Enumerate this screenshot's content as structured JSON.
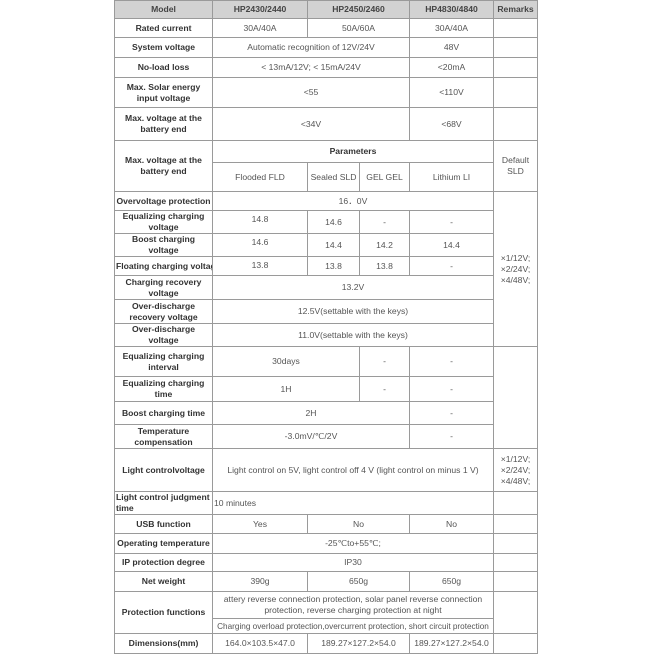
{
  "header": {
    "model": "Model",
    "a": "HP2430/2440",
    "b": "HP2450/2460",
    "c": "HP4830/4840",
    "remarks": "Remarks"
  },
  "rated_current": {
    "label": "Rated current",
    "a": "30A/40A",
    "b": "50A/60A",
    "c": "30A/40A"
  },
  "system_voltage": {
    "label": "System voltage",
    "ab": "Automatic recognition of 12V/24V",
    "c": "48V"
  },
  "no_load_loss": {
    "label": "No-load loss",
    "ab": "< 13mA/12V; < 15mA/24V",
    "c": "<20mA"
  },
  "max_solar": {
    "label": "Max. Solar energy input voltage",
    "ab": "<55",
    "c": "<110V"
  },
  "max_battery": {
    "label": "Max. voltage at the battery end",
    "ab": "<34V",
    "c": "<68V"
  },
  "parameters": {
    "label": "Max. voltage at the battery end",
    "title": "Parameters",
    "remark": "Default SLD",
    "types": [
      "Flooded FLD",
      "Sealed SLD",
      "GEL GEL",
      "Lithium LI"
    ]
  },
  "overvoltage": {
    "label": "Overvoltage protection",
    "value": "16．0V"
  },
  "equalizing_voltage": {
    "label": "Equalizing charging voltage",
    "values": [
      "14.8",
      "14.6",
      "-",
      "-"
    ]
  },
  "boost_voltage": {
    "label": "Boost charging voltage",
    "values": [
      "14.6",
      "14.4",
      "14.2",
      "14.4"
    ]
  },
  "floating_voltage": {
    "label": "Floating charging voltage",
    "values": [
      "13.8",
      "13.8",
      "13.8",
      "-"
    ]
  },
  "charging_recovery": {
    "label": "Charging recovery voltage",
    "value": "13.2V"
  },
  "over_discharge_recovery": {
    "label": "Over-discharge recovery voltage",
    "value": "12.5V(settable with the keys)"
  },
  "over_discharge": {
    "label": "Over-discharge voltage",
    "value": "11.0V(settable with the keys)"
  },
  "voltage_remark": "×1/12V; ×2/24V; ×4/48V;",
  "equalizing_interval": {
    "label": "Equalizing charging interval",
    "values": [
      "30days",
      "-",
      "-"
    ]
  },
  "equalizing_time": {
    "label": "Equalizing charging time",
    "values": [
      "1H",
      "-",
      "-"
    ]
  },
  "boost_time": {
    "label": "Boost charging time",
    "values": [
      "2H",
      "-"
    ]
  },
  "temperature_compensation": {
    "label": "Temperature compensation",
    "values": [
      "-3.0mV/℃/2V",
      "-"
    ]
  },
  "light_control": {
    "label": "Light controlvoltage",
    "value": "Light control on 5V, light control off 4 V (light control on minus 1 V)",
    "remark": "×1/12V; ×2/24V; ×4/48V;"
  },
  "light_judgment": {
    "label": "Light control judgment time",
    "value": "10 minutes"
  },
  "usb": {
    "label": "USB function",
    "values": [
      "Yes",
      "No",
      "No"
    ]
  },
  "operating_temperature": {
    "label": "Operating temperature",
    "value": "-25℃to+55℃;"
  },
  "ip": {
    "label": "IP protection degree",
    "value": "IP30"
  },
  "net_weight": {
    "label": "Net weight",
    "values": [
      "390g",
      "650g",
      "650g"
    ]
  },
  "protection": {
    "label": "Protection functions",
    "line1": "attery reverse connection protection, solar panel reverse connection protection, reverse charging protection at night",
    "line2": "Charging overload protection,overcurrent protection, short circuit protection"
  },
  "dimensions": {
    "label": "Dimensions(mm)",
    "values": [
      "164.0×103.5×47.0",
      "189.27×127.2×54.0",
      "189.27×127.2×54.0"
    ]
  }
}
